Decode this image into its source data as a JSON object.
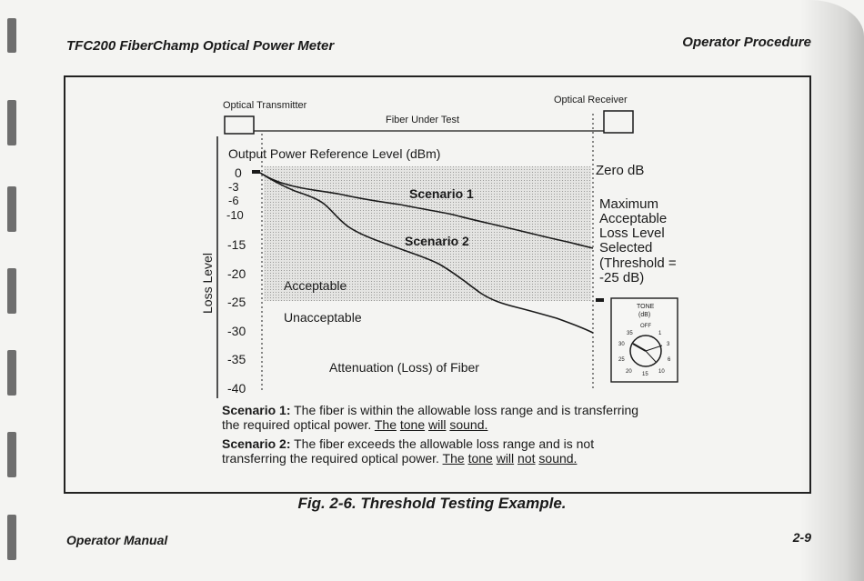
{
  "header": {
    "left": "TFC200 FiberChamp Optical Power Meter",
    "right": "Operator Procedure"
  },
  "footer": {
    "left": "Operator Manual",
    "right": "2-9"
  },
  "caption": "Fig. 2-6. Threshold Testing Example.",
  "diagram": {
    "transmitter_label": "Optical  Transmitter",
    "receiver_label": "Optical  Receiver",
    "fiber_label": "Fiber Under Test",
    "reference_label": "Output  Power  Reference  Level  (dBm)",
    "y_axis_label": "Loss Level",
    "y_ticks": [
      "0",
      "-3",
      "-6",
      "-10",
      "-15",
      "-20",
      "-25",
      "-30",
      "-35",
      "-40"
    ],
    "zero_db": "Zero  dB",
    "threshold_text": [
      "Maximum",
      "Acceptable",
      "Loss Level",
      "Selected",
      "(Threshold =",
      "-25  dB)"
    ],
    "scenario1_label": "Scenario  1",
    "scenario2_label": "Scenario  2",
    "acceptable": "Acceptable",
    "unacceptable": "Unacceptable",
    "x_axis_label": "Attenuation  (Loss)  of  Fiber",
    "dial": {
      "title": "TONE",
      "unit": "(dB)",
      "off": "OFF",
      "marks": [
        "1",
        "3",
        "6",
        "10",
        "15",
        "20",
        "25",
        "30",
        "35"
      ]
    }
  },
  "notes": {
    "s1_title": "Scenario 1:",
    "s1_text": " The fiber is within the allowable loss range and is transferring the required optical power. ",
    "s1_tone": [
      "The",
      "tone",
      "will",
      "sound."
    ],
    "s2_title": "Scenario 2:",
    "s2_text": " The fiber exceeds the allowable loss range and is not transferring the required optical power. ",
    "s2_tone": [
      "The",
      "tone",
      "will",
      "not",
      "sound."
    ]
  },
  "colors": {
    "acceptable_band": "#d9d9d7",
    "ink": "#1a1a1a"
  }
}
